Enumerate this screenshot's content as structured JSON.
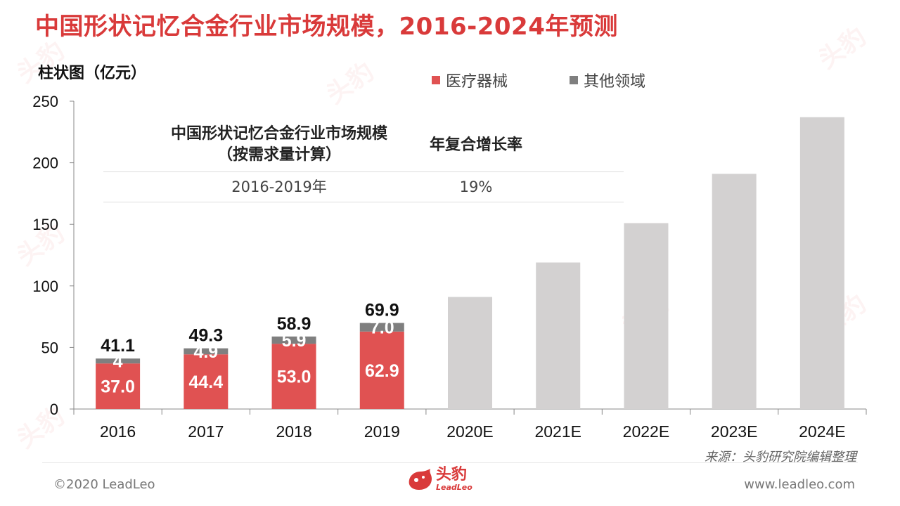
{
  "title": "中国形状记忆合金行业市场规模，2016-2024年预测",
  "unit_label": "柱状图（亿元）",
  "legend": [
    {
      "label": "医疗器械",
      "color": "#e05252"
    },
    {
      "label": "其他领域",
      "color": "#7f7f7f"
    }
  ],
  "cagr_table": {
    "header_col1_line1": "中国形状记忆合金行业市场规模",
    "header_col1_line2": "（按需求量计算）",
    "header_col2": "年复合增长率",
    "row_period": "2016-2019年",
    "row_rate": "19%"
  },
  "source": "来源：头豹研究院编辑整理",
  "footer": {
    "copyright": "©2020 LeadLeo",
    "website": "www.leadleo.com",
    "logo_cn": "头豹",
    "logo_en": "LeadLeo"
  },
  "watermark_text": "头豹",
  "chart_data": {
    "type": "bar",
    "stacked": true,
    "categories": [
      "2016",
      "2017",
      "2018",
      "2019",
      "2020E",
      "2021E",
      "2022E",
      "2023E",
      "2024E"
    ],
    "series": [
      {
        "name": "医疗器械",
        "color": "#e05252",
        "values": [
          37.0,
          44.4,
          53.0,
          62.9,
          null,
          null,
          null,
          null,
          null
        ],
        "labels": [
          "37.0",
          "44.4",
          "53.0",
          "62.9",
          "",
          "",
          "",
          "",
          ""
        ]
      },
      {
        "name": "其他领域",
        "color": "#7f7f7f",
        "values": [
          4,
          4.9,
          5.9,
          7.0,
          null,
          null,
          null,
          null,
          null
        ],
        "labels": [
          "4",
          "4.9",
          "5.9",
          "7.0",
          "",
          "",
          "",
          "",
          ""
        ]
      },
      {
        "color": "#d3d1d1",
        "values": [
          null,
          null,
          null,
          null,
          91,
          119,
          151,
          191,
          237
        ],
        "labels": [
          "",
          "",
          "",
          "",
          "",
          "",
          "",
          "",
          ""
        ]
      }
    ],
    "totals": [
      "41.1",
      "49.3",
      "58.9",
      "69.9",
      "",
      "",
      "",
      "",
      ""
    ],
    "y_ticks": [
      "0",
      "50",
      "100",
      "150",
      "200",
      "250"
    ],
    "ylim": [
      0,
      250
    ],
    "legend_position": "top-right",
    "grid": false
  }
}
